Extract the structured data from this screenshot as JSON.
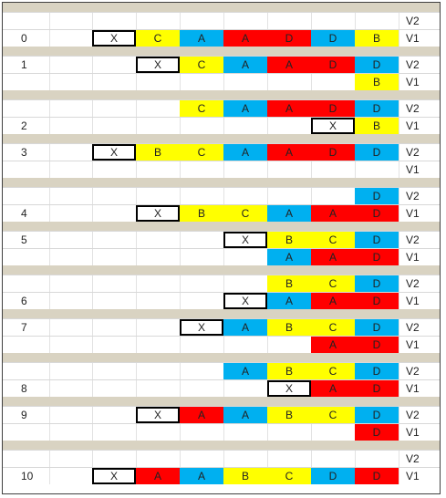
{
  "colors": {
    "yellow": "#ffff00",
    "blue": "#00b0f0",
    "red": "#ff0000",
    "separator": "#d9d3c2"
  },
  "rows": [
    {
      "type": "sep"
    },
    {
      "type": "row",
      "label": "",
      "ver": "V2",
      "cells": []
    },
    {
      "type": "row",
      "label": "0",
      "ver": "V1",
      "cells": [
        [
          "X",
          "X",
          2
        ],
        [
          "C",
          "C",
          3
        ],
        [
          "A",
          "A_blue",
          4
        ],
        [
          "A",
          "A_red",
          5
        ],
        [
          "D",
          "D_red",
          6
        ],
        [
          "D",
          "D_blue",
          7
        ],
        [
          "B",
          "B",
          8
        ]
      ]
    },
    {
      "type": "sep"
    },
    {
      "type": "row",
      "label": "1",
      "ver": "V2",
      "cells": [
        [
          "X",
          "X",
          3
        ],
        [
          "C",
          "C",
          4
        ],
        [
          "A",
          "A_blue",
          5
        ],
        [
          "A",
          "A_red",
          6
        ],
        [
          "D",
          "D_red",
          7
        ],
        [
          "D",
          "D_blue",
          8
        ]
      ]
    },
    {
      "type": "row",
      "label": "",
      "ver": "V1",
      "cells": [
        [
          "B",
          "B",
          8
        ]
      ]
    },
    {
      "type": "sep"
    },
    {
      "type": "row",
      "label": "",
      "ver": "V2",
      "cells": [
        [
          "C",
          "C",
          4
        ],
        [
          "A",
          "A_blue",
          5
        ],
        [
          "A",
          "A_red",
          6
        ],
        [
          "D",
          "D_red",
          7
        ],
        [
          "D",
          "D_blue",
          8
        ]
      ]
    },
    {
      "type": "row",
      "label": "2",
      "ver": "V1",
      "cells": [
        [
          "X",
          "X",
          7
        ],
        [
          "B",
          "B",
          8
        ]
      ]
    },
    {
      "type": "sep"
    },
    {
      "type": "row",
      "label": "3",
      "ver": "V2",
      "cells": [
        [
          "X",
          "X",
          2
        ],
        [
          "B",
          "B",
          3
        ],
        [
          "C",
          "C",
          4
        ],
        [
          "A",
          "A_blue",
          5
        ],
        [
          "A",
          "A_red",
          6
        ],
        [
          "D",
          "D_red",
          7
        ],
        [
          "D",
          "D_blue",
          8
        ]
      ]
    },
    {
      "type": "row",
      "label": "",
      "ver": "V1",
      "cells": []
    },
    {
      "type": "sep"
    },
    {
      "type": "row",
      "label": "",
      "ver": "V2",
      "cells": [
        [
          "D",
          "D_blue",
          8
        ]
      ]
    },
    {
      "type": "row",
      "label": "4",
      "ver": "V1",
      "cells": [
        [
          "X",
          "X",
          3
        ],
        [
          "B",
          "B",
          4
        ],
        [
          "C",
          "C",
          5
        ],
        [
          "A",
          "A_blue",
          6
        ],
        [
          "A",
          "A_red",
          7
        ],
        [
          "D",
          "D_red",
          8
        ]
      ]
    },
    {
      "type": "sep"
    },
    {
      "type": "row",
      "label": "5",
      "ver": "V2",
      "cells": [
        [
          "X",
          "X",
          5
        ],
        [
          "B",
          "B",
          6
        ],
        [
          "C",
          "C",
          7
        ],
        [
          "D",
          "D_blue",
          8
        ]
      ]
    },
    {
      "type": "row",
      "label": "",
      "ver": "V1",
      "cells": [
        [
          "A",
          "A_blue",
          6
        ],
        [
          "A",
          "A_red",
          7
        ],
        [
          "D",
          "D_red",
          8
        ]
      ]
    },
    {
      "type": "sep"
    },
    {
      "type": "row",
      "label": "",
      "ver": "V2",
      "cells": [
        [
          "B",
          "B",
          6
        ],
        [
          "C",
          "C",
          7
        ],
        [
          "D",
          "D_blue",
          8
        ]
      ]
    },
    {
      "type": "row",
      "label": "6",
      "ver": "V1",
      "cells": [
        [
          "X",
          "X",
          5
        ],
        [
          "A",
          "A_blue",
          6
        ],
        [
          "A",
          "A_red",
          7
        ],
        [
          "D",
          "D_red",
          8
        ]
      ]
    },
    {
      "type": "sep"
    },
    {
      "type": "row",
      "label": "7",
      "ver": "V2",
      "cells": [
        [
          "X",
          "X",
          4
        ],
        [
          "A",
          "A_blue",
          5
        ],
        [
          "B",
          "B",
          6
        ],
        [
          "C",
          "C",
          7
        ],
        [
          "D",
          "D_blue",
          8
        ]
      ]
    },
    {
      "type": "row",
      "label": "",
      "ver": "V1",
      "cells": [
        [
          "A",
          "A_red",
          7
        ],
        [
          "D",
          "D_red",
          8
        ]
      ]
    },
    {
      "type": "sep"
    },
    {
      "type": "row",
      "label": "",
      "ver": "V2",
      "cells": [
        [
          "A",
          "A_blue",
          5
        ],
        [
          "B",
          "B",
          6
        ],
        [
          "C",
          "C",
          7
        ],
        [
          "D",
          "D_blue",
          8
        ]
      ]
    },
    {
      "type": "row",
      "label": "8",
      "ver": "V1",
      "cells": [
        [
          "X",
          "X",
          6
        ],
        [
          "A",
          "A_red",
          7
        ],
        [
          "D",
          "D_red",
          8
        ]
      ]
    },
    {
      "type": "sep"
    },
    {
      "type": "row",
      "label": "9",
      "ver": "V2",
      "cells": [
        [
          "X",
          "X",
          3
        ],
        [
          "A",
          "A_red",
          4
        ],
        [
          "A",
          "A_blue",
          5
        ],
        [
          "B",
          "B",
          6
        ],
        [
          "C",
          "C",
          7
        ],
        [
          "D",
          "D_blue",
          8
        ]
      ]
    },
    {
      "type": "row",
      "label": "",
      "ver": "V1",
      "cells": [
        [
          "D",
          "D_red",
          8
        ]
      ]
    },
    {
      "type": "sep"
    },
    {
      "type": "row",
      "label": "",
      "ver": "V2",
      "cells": []
    },
    {
      "type": "row",
      "label": "10",
      "ver": "V1",
      "cells": [
        [
          "X",
          "X",
          2
        ],
        [
          "A",
          "A_red",
          3
        ],
        [
          "A",
          "A_blue",
          4
        ],
        [
          "B",
          "B",
          5
        ],
        [
          "C",
          "C",
          6
        ],
        [
          "D",
          "D_blue",
          7
        ],
        [
          "D",
          "D_red",
          8
        ]
      ]
    }
  ]
}
